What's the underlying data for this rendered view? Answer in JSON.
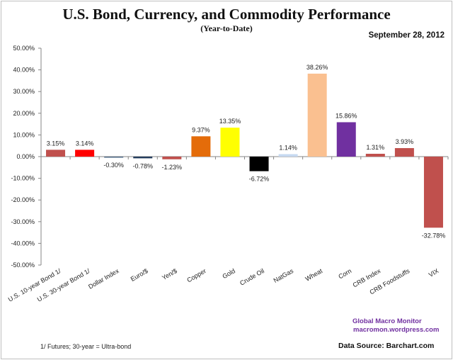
{
  "chart_data": {
    "type": "bar",
    "title": "U.S. Bond, Currency, and Commodity Performance",
    "subtitle": "(Year-to-Date)",
    "date": "September 28, 2012",
    "xlabel": "",
    "ylabel": "",
    "ylim": [
      -50,
      50
    ],
    "yticks": [
      50,
      40,
      30,
      20,
      10,
      0,
      -10,
      -20,
      -30,
      -40,
      -50
    ],
    "ytick_labels": [
      "50.00%",
      "40.00%",
      "30.00%",
      "20.00%",
      "10.00%",
      "0.00%",
      "-10.00%",
      "-20.00%",
      "-30.00%",
      "-40.00%",
      "-50.00%"
    ],
    "grid": false,
    "legend": "none",
    "categories": [
      "U.S. 10-year Bond 1/",
      "U.S. 30-year Bond 1/",
      "Dollar Index",
      "Euro/$",
      "Yen/$",
      "Copper",
      "Gold",
      "Crude Oil",
      "NatGas",
      "Wheat",
      "Corn",
      "CRB Index",
      "CRB Foodstuffs",
      "VIX"
    ],
    "values": [
      3.15,
      3.14,
      -0.3,
      -0.78,
      -1.23,
      9.37,
      13.35,
      -6.72,
      1.14,
      38.26,
      15.86,
      1.31,
      3.93,
      -32.78
    ],
    "value_labels": [
      "3.15%",
      "3.14%",
      "-0.30%",
      "-0.78%",
      "-1.23%",
      "9.37%",
      "13.35%",
      "-6.72%",
      "1.14%",
      "38.26%",
      "15.86%",
      "1.31%",
      "3.93%",
      "-32.78%"
    ],
    "colors": [
      "#c0504d",
      "#ff0000",
      "#4f6a86",
      "#243d5c",
      "#c0504d",
      "#e46c0a",
      "#ffff00",
      "#000000",
      "#c6d9f0",
      "#fac090",
      "#7030a0",
      "#c0504d",
      "#c0504d",
      "#c0504d"
    ]
  },
  "annotations": {
    "credit_name": "Global Macro Monitor",
    "credit_url": "macromon.wordpress.com",
    "source": "Data Source:  Barchart.com",
    "footnote": "1/   Futures; 30-year = Ultra-bond"
  }
}
